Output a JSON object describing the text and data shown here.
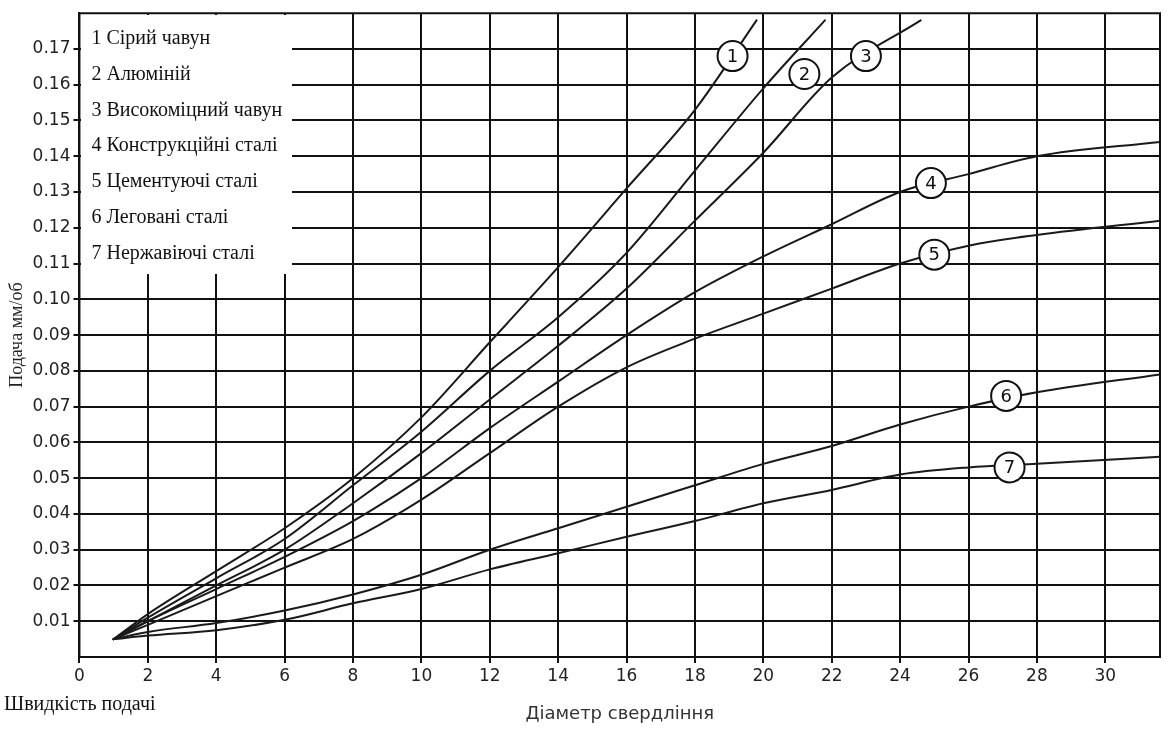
{
  "chart_data": {
    "type": "line",
    "xlabel": "Діаметр свердління",
    "ylabel": "Подача мм/об",
    "xlim": [
      0,
      31.6
    ],
    "ylim": [
      0,
      0.18
    ],
    "xticks": [
      0,
      2,
      4,
      6,
      8,
      10,
      12,
      14,
      16,
      18,
      20,
      22,
      24,
      26,
      28,
      30
    ],
    "yticks": [
      0.01,
      0.02,
      0.03,
      0.04,
      0.05,
      0.06,
      0.07,
      0.08,
      0.09,
      {
        "value": 0.1,
        "label": "0.10"
      },
      0.11,
      0.12,
      0.13,
      0.14,
      0.15,
      0.16,
      0.17
    ],
    "grid": true,
    "legend": false,
    "marker": "none",
    "line_style": "solid",
    "series": [
      {
        "color": "#1a1a1a",
        "x": [
          1,
          2,
          4,
          6,
          8,
          10,
          12,
          14,
          16,
          18,
          19.8
        ],
        "values": [
          0.005,
          0.012,
          0.024,
          0.036,
          0.05,
          0.067,
          0.088,
          0.109,
          0.131,
          0.153,
          0.178
        ]
      },
      {
        "color": "#1a1a1a",
        "x": [
          1,
          2,
          4,
          6,
          8,
          10,
          12,
          14,
          16,
          18,
          20,
          21.8
        ],
        "values": [
          0.005,
          0.011,
          0.022,
          0.033,
          0.048,
          0.063,
          0.08,
          0.095,
          0.113,
          0.136,
          0.159,
          0.178
        ]
      },
      {
        "color": "#1a1a1a",
        "x": [
          1,
          2,
          4,
          6,
          8,
          10,
          12,
          14,
          16,
          18,
          20,
          22,
          24.6
        ],
        "values": [
          0.005,
          0.01,
          0.02,
          0.03,
          0.043,
          0.057,
          0.072,
          0.087,
          0.103,
          0.122,
          0.141,
          0.162,
          0.178
        ]
      },
      {
        "color": "#1a1a1a",
        "x": [
          1,
          2,
          4,
          6,
          8,
          10,
          12,
          14,
          16,
          18,
          20,
          22,
          24,
          26,
          28,
          31.6
        ],
        "values": [
          0.005,
          0.01,
          0.019,
          0.028,
          0.038,
          0.05,
          0.064,
          0.077,
          0.09,
          0.102,
          0.112,
          0.121,
          0.13,
          0.135,
          0.14,
          0.144
        ]
      },
      {
        "color": "#1a1a1a",
        "x": [
          1,
          2,
          4,
          6,
          8,
          10,
          12,
          14,
          16,
          18,
          20,
          22,
          24,
          26,
          28,
          31.6
        ],
        "values": [
          0.005,
          0.009,
          0.017,
          0.025,
          0.033,
          0.044,
          0.057,
          0.07,
          0.081,
          0.089,
          0.096,
          0.103,
          0.11,
          0.115,
          0.118,
          0.122
        ]
      },
      {
        "color": "#1a1a1a",
        "x": [
          1,
          2,
          4,
          6,
          8,
          10,
          12,
          14,
          16,
          18,
          20,
          22,
          24,
          26,
          28,
          31.6
        ],
        "values": [
          0.005,
          0.007,
          0.0095,
          0.013,
          0.0175,
          0.023,
          0.03,
          0.036,
          0.042,
          0.048,
          0.054,
          0.059,
          0.065,
          0.07,
          0.074,
          0.079
        ]
      },
      {
        "color": "#1a1a1a",
        "x": [
          1,
          2,
          4,
          6,
          8,
          10,
          12,
          14,
          16,
          18,
          20,
          22,
          24,
          26,
          28,
          31.6
        ],
        "values": [
          0.005,
          0.006,
          0.0075,
          0.0104,
          0.015,
          0.019,
          0.0245,
          0.029,
          0.0336,
          0.038,
          0.043,
          0.0467,
          0.051,
          0.053,
          0.054,
          0.056
        ]
      }
    ],
    "annotations": [
      {
        "text": "1",
        "x": 19.1,
        "y": 0.168
      },
      {
        "text": "2",
        "x": 21.2,
        "y": 0.163
      },
      {
        "text": "3",
        "x": 23,
        "y": 0.168
      },
      {
        "text": "4",
        "x": 24.9,
        "y": 0.1325
      },
      {
        "text": "5",
        "x": 25,
        "y": 0.1125
      },
      {
        "text": "6",
        "x": 27.1,
        "y": 0.073
      },
      {
        "text": "7",
        "x": 27.2,
        "y": 0.053
      },
      "1 Сірий чавун",
      "2 Алюміній",
      "3 Високоміцний чавун",
      "4 Конструкційні сталі",
      "5 Цементуючі сталі",
      "6 Леговані сталі",
      "7 Нержавіючі сталі",
      "Швидкість подачі"
    ]
  }
}
